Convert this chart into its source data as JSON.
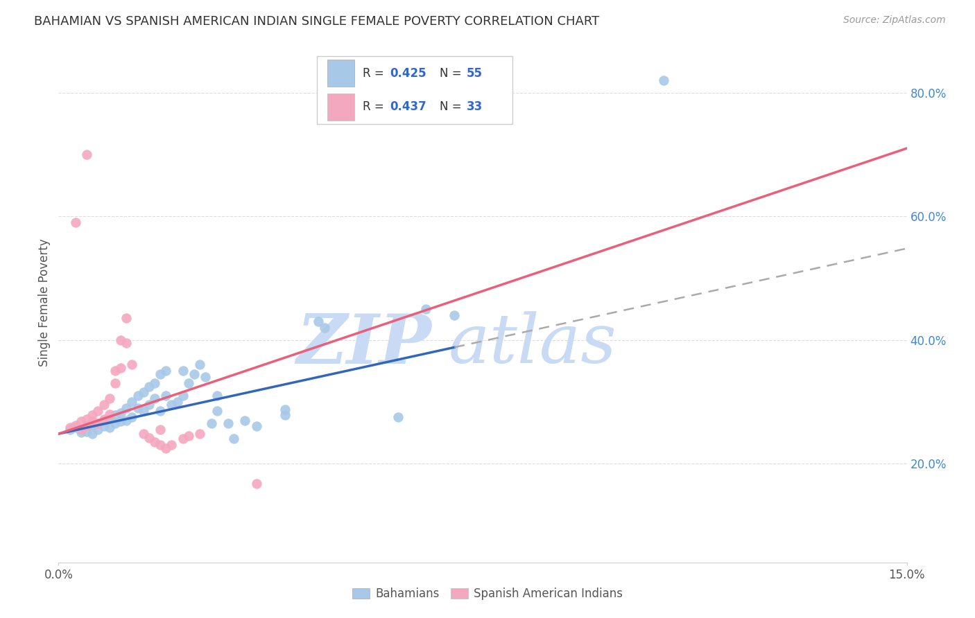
{
  "title": "BAHAMIAN VS SPANISH AMERICAN INDIAN SINGLE FEMALE POVERTY CORRELATION CHART",
  "source": "Source: ZipAtlas.com",
  "ylabel": "Single Female Poverty",
  "yticks": [
    "20.0%",
    "40.0%",
    "60.0%",
    "80.0%"
  ],
  "ytick_vals": [
    0.2,
    0.4,
    0.6,
    0.8
  ],
  "xmin": 0.0,
  "xmax": 0.15,
  "ymin": 0.04,
  "ymax": 0.88,
  "blue_color": "#a8c8e8",
  "pink_color": "#f4a8c0",
  "blue_line_color": "#3366bb",
  "pink_line_color": "#e8607a",
  "dashed_line_color": "#aaaaaa",
  "watermark_zip_color": "#c8daf4",
  "watermark_atlas_color": "#c8daf4",
  "background_color": "#ffffff",
  "grid_color": "#dddddd",
  "title_color": "#333333",
  "source_color": "#999999",
  "legend_R_N_color": "#3366cc",
  "legend_text_color": "#333333",
  "ytick_color": "#4488cc",
  "xtick_color": "#555555",
  "blue_scatter": [
    [
      0.002,
      0.255
    ],
    [
      0.003,
      0.258
    ],
    [
      0.004,
      0.25
    ],
    [
      0.005,
      0.252
    ],
    [
      0.006,
      0.248
    ],
    [
      0.006,
      0.26
    ],
    [
      0.007,
      0.255
    ],
    [
      0.007,
      0.265
    ],
    [
      0.008,
      0.26
    ],
    [
      0.008,
      0.27
    ],
    [
      0.009,
      0.258
    ],
    [
      0.009,
      0.272
    ],
    [
      0.01,
      0.265
    ],
    [
      0.01,
      0.278
    ],
    [
      0.011,
      0.268
    ],
    [
      0.011,
      0.282
    ],
    [
      0.012,
      0.27
    ],
    [
      0.012,
      0.29
    ],
    [
      0.013,
      0.275
    ],
    [
      0.013,
      0.3
    ],
    [
      0.014,
      0.29
    ],
    [
      0.014,
      0.31
    ],
    [
      0.015,
      0.285
    ],
    [
      0.015,
      0.315
    ],
    [
      0.016,
      0.295
    ],
    [
      0.016,
      0.325
    ],
    [
      0.017,
      0.305
    ],
    [
      0.017,
      0.33
    ],
    [
      0.018,
      0.285
    ],
    [
      0.018,
      0.345
    ],
    [
      0.019,
      0.31
    ],
    [
      0.019,
      0.35
    ],
    [
      0.02,
      0.295
    ],
    [
      0.021,
      0.3
    ],
    [
      0.022,
      0.31
    ],
    [
      0.022,
      0.35
    ],
    [
      0.023,
      0.33
    ],
    [
      0.024,
      0.345
    ],
    [
      0.025,
      0.36
    ],
    [
      0.026,
      0.34
    ],
    [
      0.027,
      0.265
    ],
    [
      0.028,
      0.285
    ],
    [
      0.028,
      0.31
    ],
    [
      0.03,
      0.265
    ],
    [
      0.031,
      0.24
    ],
    [
      0.033,
      0.27
    ],
    [
      0.035,
      0.26
    ],
    [
      0.04,
      0.278
    ],
    [
      0.04,
      0.288
    ],
    [
      0.046,
      0.43
    ],
    [
      0.047,
      0.42
    ],
    [
      0.06,
      0.275
    ],
    [
      0.065,
      0.45
    ],
    [
      0.07,
      0.44
    ],
    [
      0.107,
      0.82
    ]
  ],
  "pink_scatter": [
    [
      0.002,
      0.258
    ],
    [
      0.003,
      0.262
    ],
    [
      0.004,
      0.255
    ],
    [
      0.004,
      0.268
    ],
    [
      0.005,
      0.26
    ],
    [
      0.005,
      0.272
    ],
    [
      0.006,
      0.268
    ],
    [
      0.006,
      0.278
    ],
    [
      0.007,
      0.265
    ],
    [
      0.007,
      0.285
    ],
    [
      0.008,
      0.272
    ],
    [
      0.008,
      0.295
    ],
    [
      0.009,
      0.28
    ],
    [
      0.009,
      0.305
    ],
    [
      0.01,
      0.33
    ],
    [
      0.01,
      0.35
    ],
    [
      0.011,
      0.355
    ],
    [
      0.011,
      0.4
    ],
    [
      0.012,
      0.395
    ],
    [
      0.012,
      0.435
    ],
    [
      0.013,
      0.36
    ],
    [
      0.015,
      0.248
    ],
    [
      0.016,
      0.242
    ],
    [
      0.017,
      0.235
    ],
    [
      0.018,
      0.23
    ],
    [
      0.018,
      0.255
    ],
    [
      0.019,
      0.225
    ],
    [
      0.02,
      0.23
    ],
    [
      0.022,
      0.24
    ],
    [
      0.023,
      0.245
    ],
    [
      0.025,
      0.248
    ],
    [
      0.035,
      0.168
    ],
    [
      0.003,
      0.59
    ],
    [
      0.005,
      0.7
    ]
  ],
  "blue_line_x": [
    0.0,
    0.07
  ],
  "blue_line_y": [
    0.248,
    0.388
  ],
  "pink_line_x": [
    0.0,
    0.15
  ],
  "pink_line_y": [
    0.248,
    0.71
  ],
  "dashed_line_x": [
    0.07,
    0.15
  ],
  "dashed_line_y": [
    0.388,
    0.548
  ]
}
